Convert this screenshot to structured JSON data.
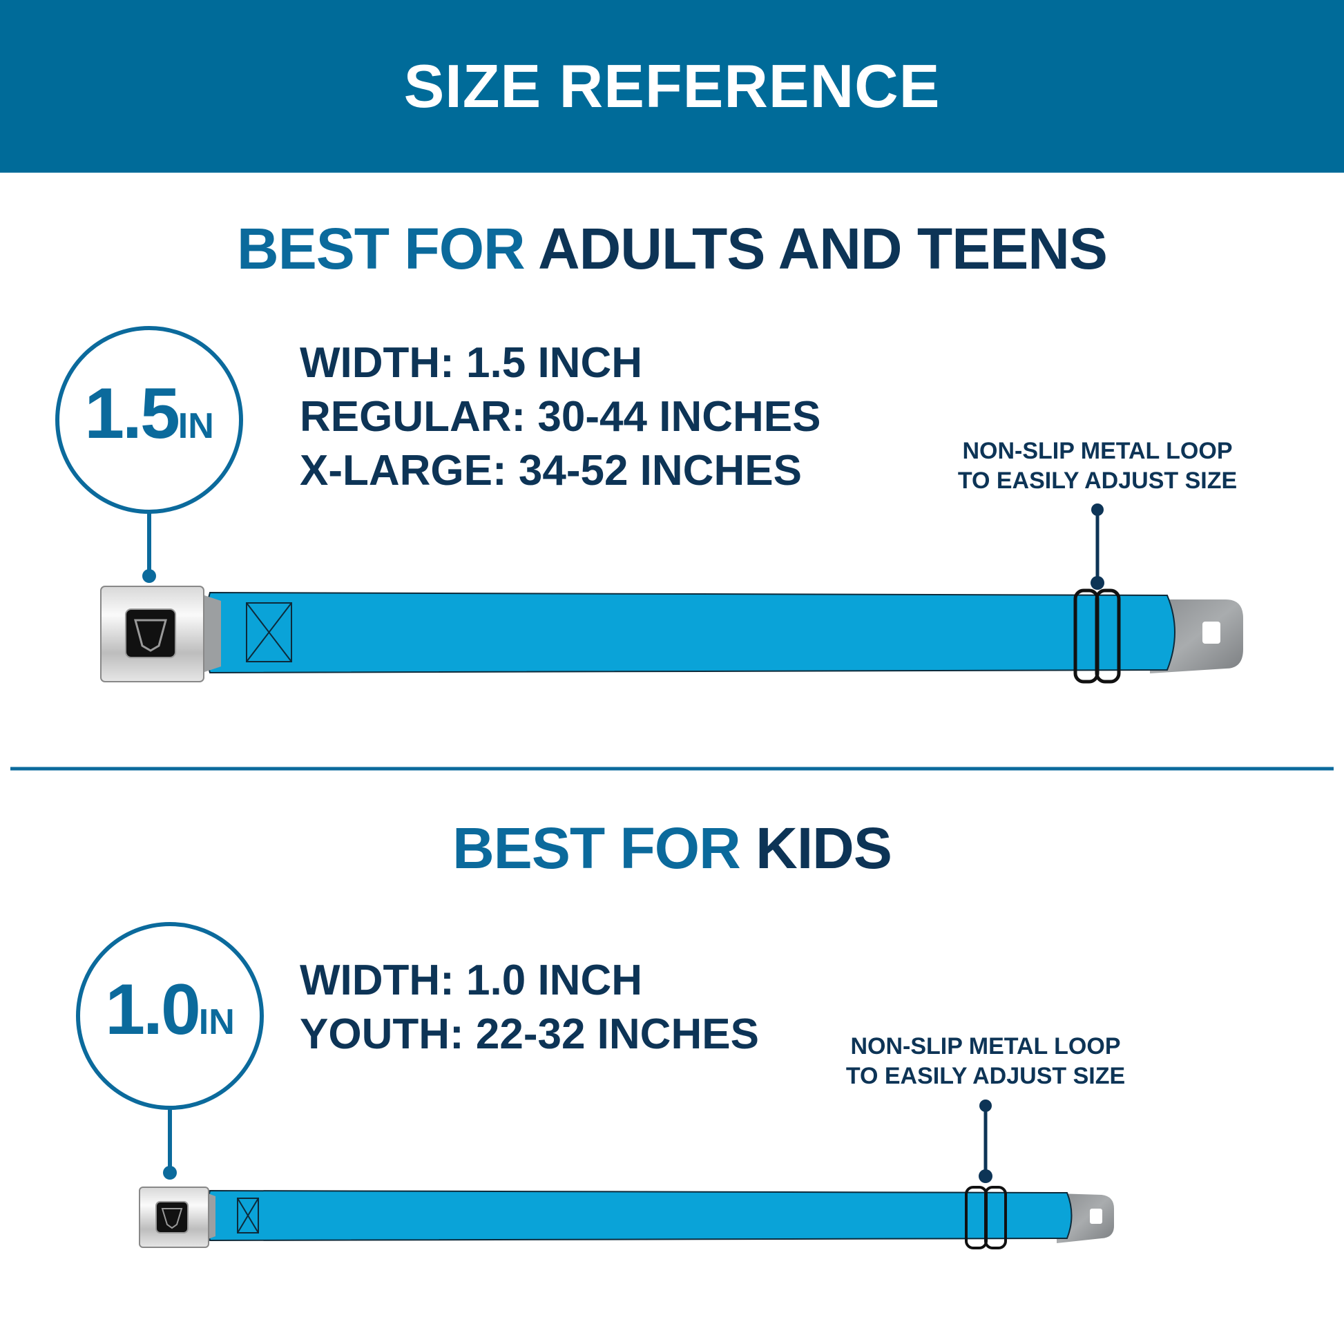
{
  "header": {
    "title": "SIZE REFERENCE"
  },
  "colors": {
    "header_bg": "#006b99",
    "accent_blue": "#0b6a9c",
    "navy": "#0d3456",
    "strap": "#0aa3d8"
  },
  "sections": [
    {
      "heading_accent": "BEST FOR",
      "heading_main": "ADULTS AND TEENS",
      "badge_number": "1.5",
      "badge_unit": "IN",
      "specs": [
        "WIDTH: 1.5 INCH",
        "REGULAR: 30-44 INCHES",
        "X-LARGE: 34-52 INCHES"
      ],
      "note": [
        "NON-SLIP METAL LOOP",
        "TO EASILY ADJUST SIZE"
      ]
    },
    {
      "heading_accent": "BEST FOR",
      "heading_main": "KIDS",
      "badge_number": "1.0",
      "badge_unit": "IN",
      "specs": [
        "WIDTH: 1.0 INCH",
        "YOUTH: 22-32 INCHES"
      ],
      "note": [
        "NON-SLIP METAL LOOP",
        "TO EASILY ADJUST SIZE"
      ]
    }
  ]
}
